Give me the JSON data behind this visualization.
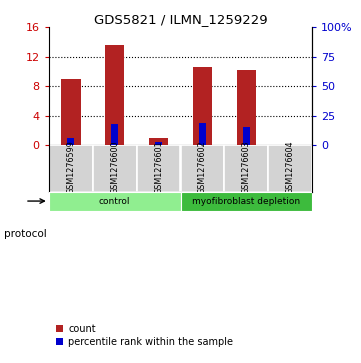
{
  "title": "GDS5821 / ILMN_1259229",
  "samples": [
    "GSM1276599",
    "GSM1276600",
    "GSM1276601",
    "GSM1276602",
    "GSM1276603",
    "GSM1276604"
  ],
  "count_values": [
    9.0,
    13.6,
    1.0,
    10.6,
    10.2,
    0.0
  ],
  "percentile_values": [
    1.0,
    2.85,
    0.45,
    3.0,
    2.5,
    0.0
  ],
  "ylim_left": [
    0,
    16
  ],
  "ylim_right": [
    0,
    100
  ],
  "yticks_left": [
    0,
    4,
    8,
    12,
    16
  ],
  "yticks_right": [
    0,
    25,
    50,
    75,
    100
  ],
  "yticklabels_right": [
    "0",
    "25",
    "50",
    "75",
    "100%"
  ],
  "bar_color": "#b22222",
  "percentile_color": "#0000cd",
  "grid_color": "#000000",
  "protocol_groups": [
    {
      "label": "control",
      "span": [
        0,
        3
      ],
      "color": "#90EE90"
    },
    {
      "label": "myofibroblast depletion",
      "span": [
        3,
        6
      ],
      "color": "#3dbb3d"
    }
  ],
  "legend_count_label": "count",
  "legend_percentile_label": "percentile rank within the sample",
  "protocol_label": "protocol",
  "bar_width": 0.45,
  "blue_bar_width": 0.15,
  "sample_box_color": "#d3d3d3",
  "left_tick_color": "#cc0000",
  "right_tick_color": "#0000cd",
  "gridline_yticks": [
    4,
    8,
    12
  ]
}
